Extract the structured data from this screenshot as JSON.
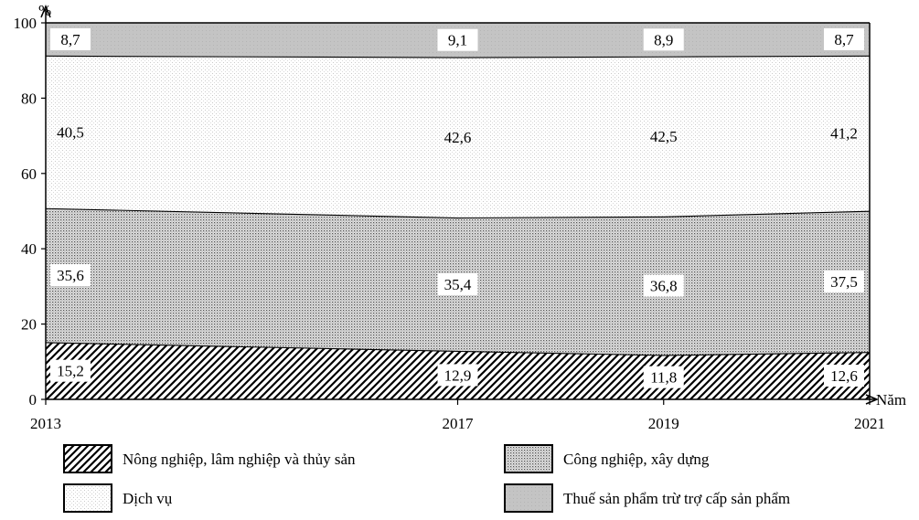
{
  "chart_data": {
    "type": "area",
    "stacked": true,
    "percent": true,
    "x": [
      "2013",
      "2017",
      "2019",
      "2021"
    ],
    "x_values": [
      2013,
      2017,
      2019,
      2021
    ],
    "xlabel": "Năm",
    "ylabel": "%",
    "ylim": [
      0,
      100
    ],
    "yticks": [
      "0",
      "20",
      "40",
      "60",
      "80",
      "100"
    ],
    "grid": false,
    "legend": "bottom",
    "series": [
      {
        "name": "Nông nghiệp, lâm nghiệp và thủy sản",
        "values": [
          15.2,
          12.9,
          11.8,
          12.6
        ],
        "labels": [
          "15,2",
          "12,9",
          "11,8",
          "12,6"
        ],
        "pattern": "hatch"
      },
      {
        "name": "Công nghiệp, xây dựng",
        "values": [
          35.6,
          35.4,
          36.8,
          37.5
        ],
        "labels": [
          "35,6",
          "35,4",
          "36,8",
          "37,5"
        ],
        "pattern": "dense-dots"
      },
      {
        "name": "Dịch vụ",
        "values": [
          40.5,
          42.6,
          42.5,
          41.2
        ],
        "labels": [
          "40,5",
          "42,6",
          "42,5",
          "41,2"
        ],
        "pattern": "light-dots"
      },
      {
        "name": "Thuế sản phẩm trừ trợ cấp sản phẩm",
        "values": [
          8.7,
          9.1,
          8.9,
          8.7
        ],
        "labels": [
          "8,7",
          "9,1",
          "8,9",
          "8,7"
        ],
        "pattern": "gray"
      }
    ]
  }
}
